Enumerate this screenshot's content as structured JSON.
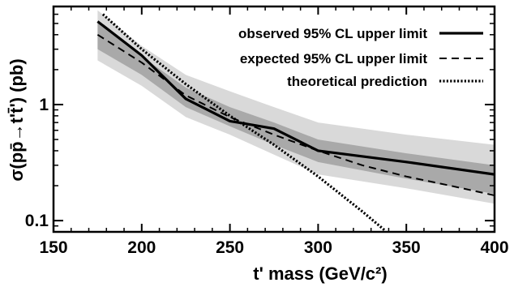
{
  "chart_data": {
    "type": "line",
    "xlabel": "t' mass  (GeV/c²)",
    "ylabel": "σ(pp̄→t't̄')  (pb)",
    "xlim": [
      150,
      400
    ],
    "ylim": [
      0.08,
      7
    ],
    "yscale": "log",
    "x_ticks": [
      150,
      200,
      250,
      300,
      350,
      400
    ],
    "y_ticks": [
      0.1,
      1
    ],
    "y_tick_labels": [
      "0.1",
      "1"
    ],
    "grid": false,
    "legend_position": "top-right",
    "colors": {
      "band_2sigma": "#d9d9d9",
      "band_1sigma": "#a9a9a9",
      "line": "#000000"
    },
    "bands": [
      {
        "level": "2sigma",
        "x": [
          175,
          200,
          225,
          250,
          275,
          300,
          350,
          400
        ],
        "upper": [
          6.5,
          3.2,
          1.8,
          1.3,
          0.95,
          0.7,
          0.55,
          0.45
        ],
        "lower": [
          2.4,
          1.45,
          0.78,
          0.55,
          0.37,
          0.25,
          0.19,
          0.14
        ]
      },
      {
        "level": "1sigma",
        "x": [
          175,
          200,
          225,
          250,
          275,
          300,
          350,
          400
        ],
        "upper": [
          5.2,
          2.6,
          1.4,
          0.95,
          0.7,
          0.5,
          0.38,
          0.3
        ],
        "lower": [
          3.0,
          1.8,
          0.95,
          0.65,
          0.45,
          0.32,
          0.23,
          0.17
        ]
      }
    ],
    "series": [
      {
        "name": "observed 95% CL upper limit",
        "style": "solid",
        "x": [
          175,
          200,
          225,
          250,
          255,
          275,
          300,
          350,
          400
        ],
        "y": [
          5.2,
          2.65,
          1.12,
          0.72,
          0.7,
          0.62,
          0.4,
          0.32,
          0.25
        ]
      },
      {
        "name": "expected 95% CL upper limit",
        "style": "dashed",
        "x": [
          175,
          200,
          225,
          250,
          275,
          300,
          325,
          350,
          375,
          400
        ],
        "y": [
          4.0,
          2.3,
          1.2,
          0.78,
          0.55,
          0.4,
          0.3,
          0.24,
          0.2,
          0.165
        ]
      },
      {
        "name": "theoretical prediction",
        "style": "dotted",
        "x": [
          178,
          200,
          225,
          250,
          275,
          300,
          325,
          338
        ],
        "y": [
          6.0,
          3.0,
          1.5,
          0.8,
          0.45,
          0.24,
          0.12,
          0.082
        ]
      }
    ]
  }
}
